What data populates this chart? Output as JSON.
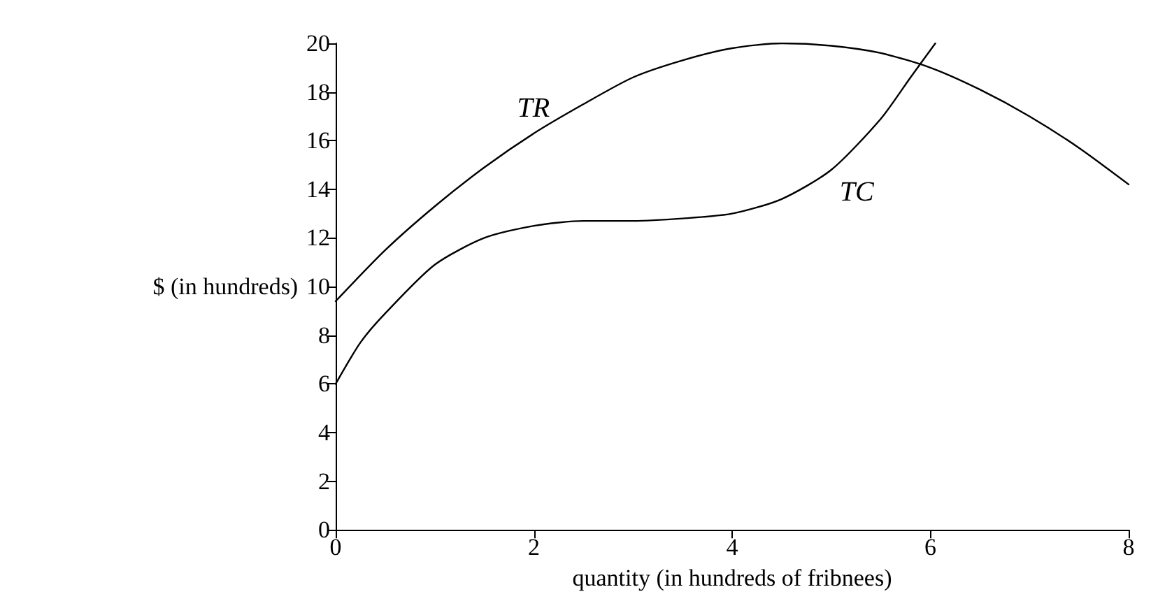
{
  "chart_data": {
    "type": "line",
    "xlabel": "quantity (in hundreds of fribnees)",
    "ylabel": "$ (in hundreds)",
    "xlim": [
      0,
      8
    ],
    "xticks": [
      0,
      2,
      4,
      6,
      8
    ],
    "ylim": [
      0,
      20
    ],
    "yticks": [
      0,
      2,
      4,
      6,
      8,
      10,
      12,
      14,
      16,
      18,
      20
    ],
    "grid": false,
    "marker": "none",
    "line_style": "solid",
    "series": [
      {
        "name": "TR",
        "color": "#000000",
        "x": [
          0,
          0.5,
          1,
          1.5,
          2,
          2.5,
          3,
          3.5,
          4,
          4.5,
          5,
          5.5,
          6,
          6.5,
          7,
          7.5,
          8
        ],
        "values": [
          9.4,
          11.5,
          13.3,
          14.9,
          16.3,
          17.5,
          18.6,
          19.3,
          19.8,
          20,
          19.9,
          19.6,
          19,
          18.1,
          17,
          15.7,
          14.2
        ]
      },
      {
        "name": "TC",
        "color": "#000000",
        "x": [
          0,
          0.25,
          0.5,
          1,
          1.5,
          2,
          2.5,
          3,
          3.5,
          4,
          4.5,
          5,
          5.5,
          5.8,
          6.05
        ],
        "values": [
          6,
          7.7,
          8.9,
          10.9,
          12,
          12.5,
          12.7,
          12.7,
          12.8,
          13,
          13.6,
          14.8,
          16.9,
          18.6,
          20
        ]
      }
    ]
  }
}
